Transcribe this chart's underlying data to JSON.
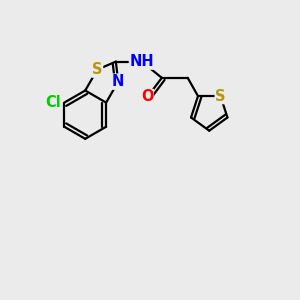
{
  "bg_color": "#ebebeb",
  "bond_color": "#000000",
  "bond_width": 1.6,
  "atom_colors": {
    "S": "#b8960c",
    "N": "#0000ff",
    "O": "#ff0000",
    "Cl": "#00cc00",
    "C": "#000000",
    "H": "#888888"
  },
  "font_size_atom": 10.5
}
